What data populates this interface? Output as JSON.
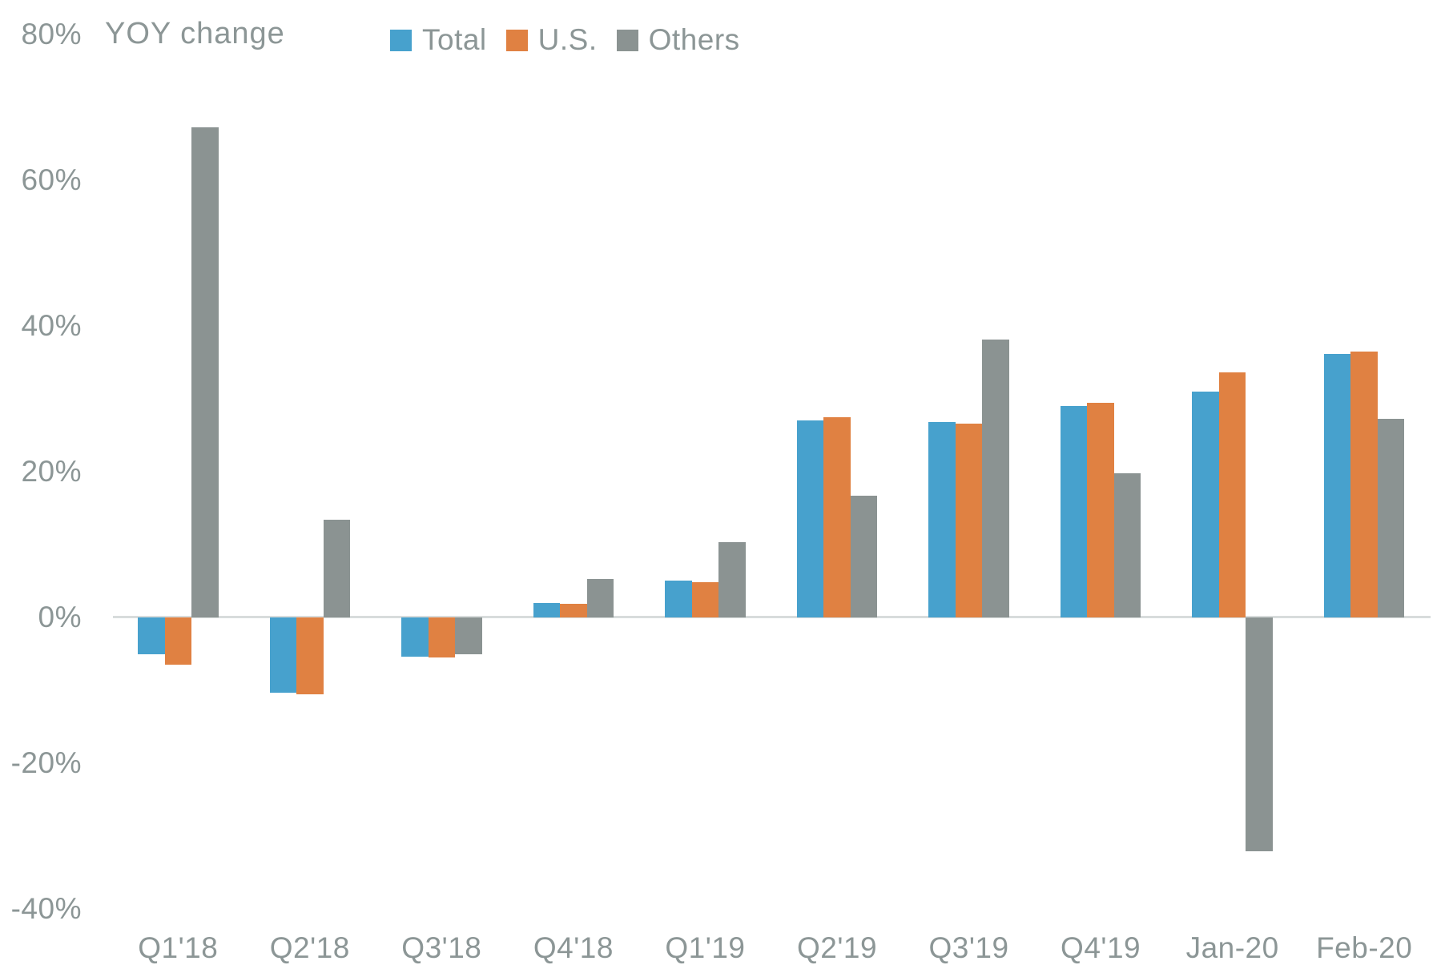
{
  "chart_data": {
    "type": "bar",
    "title": "YOY change",
    "categories": [
      "Q1'18",
      "Q2'18",
      "Q3'18",
      "Q4'18",
      "Q1'19",
      "Q2'19",
      "Q3'19",
      "Q4'19",
      "Jan-20",
      "Feb-20"
    ],
    "series": [
      {
        "name": "Total",
        "color": "#47a1cd",
        "values": [
          -5.1,
          -10.3,
          -5.4,
          2.0,
          5.1,
          27.0,
          26.8,
          29.0,
          31.0,
          36.2
        ]
      },
      {
        "name": "U.S.",
        "color": "#e08142",
        "values": [
          -6.5,
          -10.6,
          -5.5,
          1.9,
          4.8,
          27.5,
          26.6,
          29.4,
          33.6,
          36.5
        ]
      },
      {
        "name": "Others",
        "color": "#8b9392",
        "values": [
          67.3,
          13.4,
          -5.0,
          5.3,
          10.3,
          16.7,
          38.1,
          19.8,
          -32.1,
          27.3
        ]
      }
    ],
    "xlabel": "",
    "ylabel": "YOY change",
    "ylim": [
      -40,
      80
    ],
    "ytick_step": 20,
    "ytick_values": [
      80,
      60,
      40,
      20,
      0,
      -20,
      -40
    ],
    "ytick_labels": [
      "80%",
      "60%",
      "40%",
      "20%",
      "0%",
      "-20%",
      "-40%"
    ],
    "legend_position": "top",
    "grid": false,
    "zero_line": true
  },
  "styles": {
    "background": "#ffffff",
    "text_color": "#8c9696",
    "zero_line_color": "#d8dcdc"
  }
}
